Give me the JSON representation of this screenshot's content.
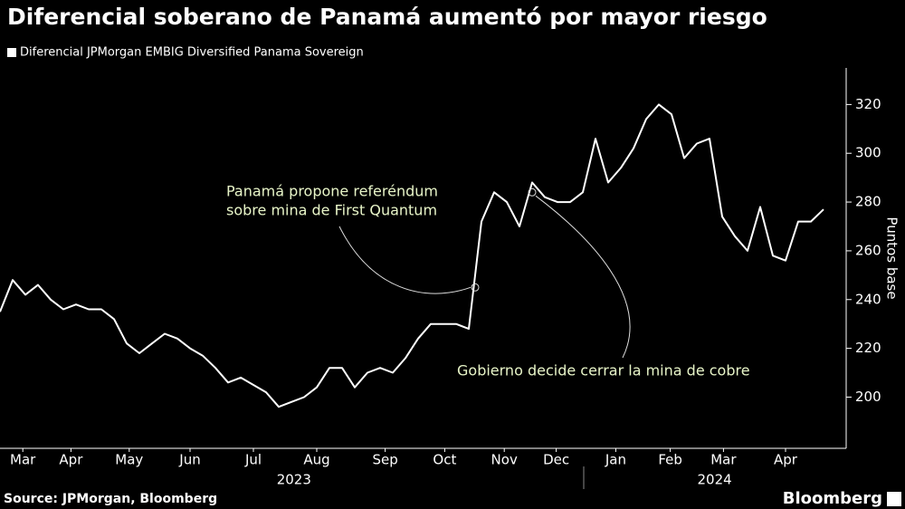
{
  "chart_data": {
    "type": "line",
    "title": "Diferencial soberano de Panamá aumentó por mayor riesgo",
    "series": [
      {
        "name": "Diferencial JPMorgan EMBIG Diversified Panama Sovereign",
        "color": "#ffffff",
        "values": [
          235,
          248,
          242,
          246,
          240,
          236,
          238,
          236,
          236,
          232,
          222,
          218,
          222,
          226,
          224,
          220,
          217,
          212,
          206,
          208,
          205,
          202,
          196,
          198,
          200,
          204,
          212,
          212,
          204,
          210,
          212,
          210,
          216,
          224,
          230,
          230,
          230,
          228,
          272,
          284,
          280,
          270,
          288,
          282,
          280,
          280,
          284,
          306,
          288,
          294,
          302,
          314,
          320,
          316,
          298,
          304,
          306,
          274,
          266,
          260,
          278,
          258,
          256,
          272,
          272,
          277
        ]
      }
    ],
    "xlim": [
      0,
      65
    ],
    "xticks": [
      {
        "value": 1.8,
        "label": "Mar"
      },
      {
        "value": 5.6,
        "label": "Apr"
      },
      {
        "value": 10.2,
        "label": "May"
      },
      {
        "value": 15,
        "label": "Jun"
      },
      {
        "value": 20,
        "label": "Jul"
      },
      {
        "value": 25,
        "label": "Aug"
      },
      {
        "value": 30.4,
        "label": "Sep"
      },
      {
        "value": 35.1,
        "label": "Oct"
      },
      {
        "value": 39.8,
        "label": "Nov"
      },
      {
        "value": 43.9,
        "label": "Dec"
      },
      {
        "value": 48.6,
        "label": "Jan"
      },
      {
        "value": 52.9,
        "label": "Feb"
      },
      {
        "value": 57.1,
        "label": "Mar"
      },
      {
        "value": 62,
        "label": "Apr"
      }
    ],
    "year_labels": [
      {
        "value": 23.2,
        "label": "2023"
      },
      {
        "value": 56.4,
        "label": "2024"
      }
    ],
    "ylim": [
      179,
      335
    ],
    "yticks": [
      200,
      220,
      240,
      260,
      280,
      300,
      320
    ],
    "y_axis_label": "Puntos base",
    "annotations": [
      {
        "text": [
          "Panamá propone referéndum",
          "sobre mina de First Quantum"
        ],
        "x": 37.5,
        "y": 245
      },
      {
        "text": [
          "Gobierno decide cerrar la mina de cobre"
        ],
        "x": 42,
        "y": 284
      }
    ],
    "source": "Source: JPMorgan, Bloomberg",
    "brand": "Bloomberg",
    "grid": false
  }
}
